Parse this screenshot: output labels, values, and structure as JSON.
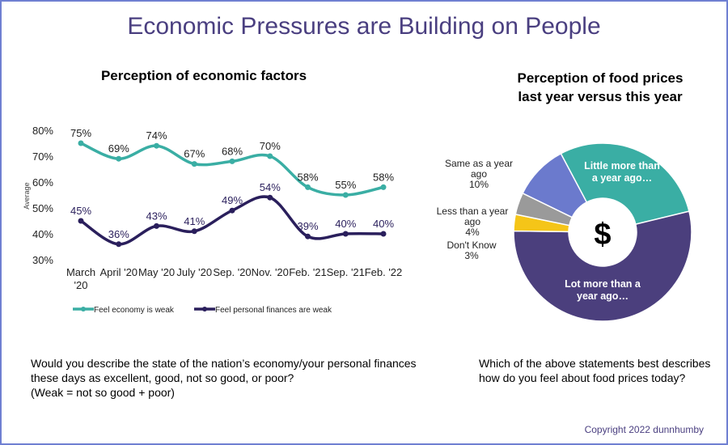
{
  "title": "Economic Pressures are Building on People",
  "copyright": "Copyright 2022 dunnhumby",
  "colors": {
    "teal": "#3aaea4",
    "navy": "#2a1f5c",
    "lot_more": "#4b3f7d",
    "same": "#6b7acd",
    "less": "#9a9a9a",
    "dont_know": "#f5c518",
    "title": "#4a3f80",
    "frame": "#6f80d2"
  },
  "chart_data": [
    {
      "type": "line",
      "title": "Perception of economic factors",
      "ylabel": "Average",
      "xlabel": "",
      "ylim": [
        30,
        80
      ],
      "yticks": [
        "80%",
        "70%",
        "60%",
        "50%",
        "40%",
        "30%"
      ],
      "ytick_values": [
        80,
        70,
        60,
        50,
        40,
        30
      ],
      "categories": [
        "March '20",
        "April '20",
        "May '20",
        "July '20",
        "Sep. '20",
        "Nov. '20",
        "Feb. '21",
        "Sep. '21",
        "Feb. '22"
      ],
      "category_lines": [
        [
          "March",
          "'20"
        ],
        [
          "April '20"
        ],
        [
          "May '20"
        ],
        [
          "July '20"
        ],
        [
          "Sep. '20"
        ],
        [
          "Nov. '20"
        ],
        [
          "Feb. '21"
        ],
        [
          "Sep. '21"
        ],
        [
          "Feb. '22"
        ]
      ],
      "series": [
        {
          "name": "Feel economy is weak",
          "color": "#3aaea4",
          "values": [
            75,
            69,
            74,
            67,
            68,
            70,
            58,
            55,
            58
          ],
          "labels": [
            "75%",
            "69%",
            "74%",
            "67%",
            "68%",
            "70%",
            "58%",
            "55%",
            "58%"
          ]
        },
        {
          "name": "Feel personal finances are weak",
          "color": "#2a1f5c",
          "values": [
            45,
            36,
            43,
            41,
            49,
            54,
            39,
            40,
            40
          ],
          "labels": [
            "45%",
            "36%",
            "43%",
            "41%",
            "49%",
            "54%",
            "39%",
            "40%",
            "40%"
          ]
        }
      ],
      "legend": "bottom",
      "grid": false
    },
    {
      "type": "pie",
      "title_lines": [
        "Perception of food prices",
        "last year versus this year"
      ],
      "center_label": "$",
      "slices": [
        {
          "label": "Little more than a year ago…",
          "label_lines": [
            "Little more than",
            "a year ago…"
          ],
          "value": 29,
          "color": "#3aaea4"
        },
        {
          "label": "Lot more than a year ago…",
          "label_lines": [
            "Lot more than a",
            "year ago…"
          ],
          "value": 54,
          "color": "#4b3f7d"
        },
        {
          "label": "Don't Know",
          "label_lines": [
            "Don't Know",
            "3%"
          ],
          "value": 3,
          "color": "#f5c518"
        },
        {
          "label": "Less than a year ago",
          "label_lines": [
            "Less than a year",
            "ago",
            "4%"
          ],
          "value": 4,
          "color": "#9a9a9a"
        },
        {
          "label": "Same as a year ago",
          "label_lines": [
            "Same as a year",
            "ago",
            "10%"
          ],
          "value": 10,
          "color": "#6b7acd"
        }
      ]
    }
  ],
  "left_question": [
    "Would you describe the state of the nation’s economy/your personal finances",
    "these days as excellent, good, not so good, or poor?",
    "(Weak = not so good + poor)"
  ],
  "right_question": [
    "Which of the above statements best describes",
    "how do you feel about food prices today?"
  ]
}
